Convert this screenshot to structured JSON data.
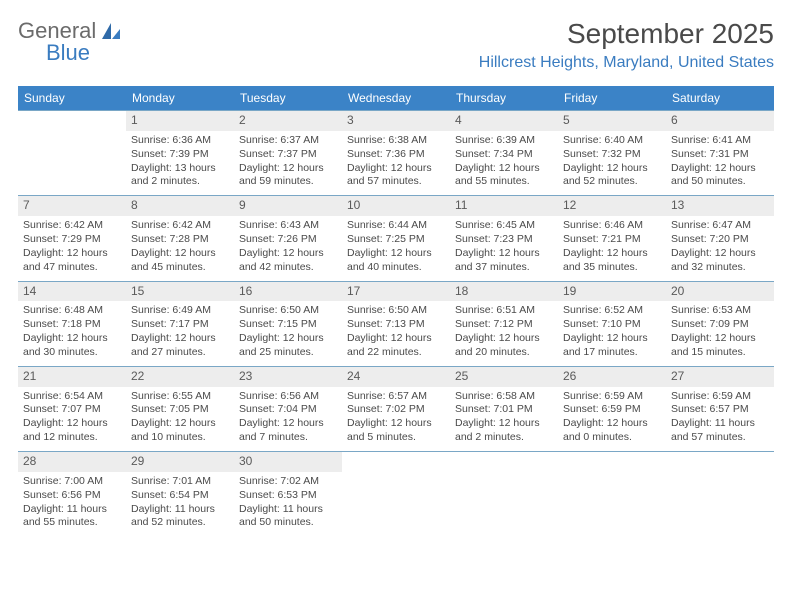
{
  "logo": {
    "text1": "General",
    "text2": "Blue"
  },
  "title": "September 2025",
  "location": "Hillcrest Heights, Maryland, United States",
  "colors": {
    "header_bg": "#3b83c7",
    "header_text": "#ffffff",
    "accent": "#3a7cc0",
    "cell_border": "#7aa7c6",
    "daynum_bg": "#ededed",
    "body_text": "#4a4a4a",
    "logo_gray": "#6b6b6b"
  },
  "day_headers": [
    "Sunday",
    "Monday",
    "Tuesday",
    "Wednesday",
    "Thursday",
    "Friday",
    "Saturday"
  ],
  "weeks": [
    [
      {
        "num": "",
        "sunrise": "",
        "sunset": "",
        "daylight": ""
      },
      {
        "num": "1",
        "sunrise": "Sunrise: 6:36 AM",
        "sunset": "Sunset: 7:39 PM",
        "daylight": "Daylight: 13 hours and 2 minutes."
      },
      {
        "num": "2",
        "sunrise": "Sunrise: 6:37 AM",
        "sunset": "Sunset: 7:37 PM",
        "daylight": "Daylight: 12 hours and 59 minutes."
      },
      {
        "num": "3",
        "sunrise": "Sunrise: 6:38 AM",
        "sunset": "Sunset: 7:36 PM",
        "daylight": "Daylight: 12 hours and 57 minutes."
      },
      {
        "num": "4",
        "sunrise": "Sunrise: 6:39 AM",
        "sunset": "Sunset: 7:34 PM",
        "daylight": "Daylight: 12 hours and 55 minutes."
      },
      {
        "num": "5",
        "sunrise": "Sunrise: 6:40 AM",
        "sunset": "Sunset: 7:32 PM",
        "daylight": "Daylight: 12 hours and 52 minutes."
      },
      {
        "num": "6",
        "sunrise": "Sunrise: 6:41 AM",
        "sunset": "Sunset: 7:31 PM",
        "daylight": "Daylight: 12 hours and 50 minutes."
      }
    ],
    [
      {
        "num": "7",
        "sunrise": "Sunrise: 6:42 AM",
        "sunset": "Sunset: 7:29 PM",
        "daylight": "Daylight: 12 hours and 47 minutes."
      },
      {
        "num": "8",
        "sunrise": "Sunrise: 6:42 AM",
        "sunset": "Sunset: 7:28 PM",
        "daylight": "Daylight: 12 hours and 45 minutes."
      },
      {
        "num": "9",
        "sunrise": "Sunrise: 6:43 AM",
        "sunset": "Sunset: 7:26 PM",
        "daylight": "Daylight: 12 hours and 42 minutes."
      },
      {
        "num": "10",
        "sunrise": "Sunrise: 6:44 AM",
        "sunset": "Sunset: 7:25 PM",
        "daylight": "Daylight: 12 hours and 40 minutes."
      },
      {
        "num": "11",
        "sunrise": "Sunrise: 6:45 AM",
        "sunset": "Sunset: 7:23 PM",
        "daylight": "Daylight: 12 hours and 37 minutes."
      },
      {
        "num": "12",
        "sunrise": "Sunrise: 6:46 AM",
        "sunset": "Sunset: 7:21 PM",
        "daylight": "Daylight: 12 hours and 35 minutes."
      },
      {
        "num": "13",
        "sunrise": "Sunrise: 6:47 AM",
        "sunset": "Sunset: 7:20 PM",
        "daylight": "Daylight: 12 hours and 32 minutes."
      }
    ],
    [
      {
        "num": "14",
        "sunrise": "Sunrise: 6:48 AM",
        "sunset": "Sunset: 7:18 PM",
        "daylight": "Daylight: 12 hours and 30 minutes."
      },
      {
        "num": "15",
        "sunrise": "Sunrise: 6:49 AM",
        "sunset": "Sunset: 7:17 PM",
        "daylight": "Daylight: 12 hours and 27 minutes."
      },
      {
        "num": "16",
        "sunrise": "Sunrise: 6:50 AM",
        "sunset": "Sunset: 7:15 PM",
        "daylight": "Daylight: 12 hours and 25 minutes."
      },
      {
        "num": "17",
        "sunrise": "Sunrise: 6:50 AM",
        "sunset": "Sunset: 7:13 PM",
        "daylight": "Daylight: 12 hours and 22 minutes."
      },
      {
        "num": "18",
        "sunrise": "Sunrise: 6:51 AM",
        "sunset": "Sunset: 7:12 PM",
        "daylight": "Daylight: 12 hours and 20 minutes."
      },
      {
        "num": "19",
        "sunrise": "Sunrise: 6:52 AM",
        "sunset": "Sunset: 7:10 PM",
        "daylight": "Daylight: 12 hours and 17 minutes."
      },
      {
        "num": "20",
        "sunrise": "Sunrise: 6:53 AM",
        "sunset": "Sunset: 7:09 PM",
        "daylight": "Daylight: 12 hours and 15 minutes."
      }
    ],
    [
      {
        "num": "21",
        "sunrise": "Sunrise: 6:54 AM",
        "sunset": "Sunset: 7:07 PM",
        "daylight": "Daylight: 12 hours and 12 minutes."
      },
      {
        "num": "22",
        "sunrise": "Sunrise: 6:55 AM",
        "sunset": "Sunset: 7:05 PM",
        "daylight": "Daylight: 12 hours and 10 minutes."
      },
      {
        "num": "23",
        "sunrise": "Sunrise: 6:56 AM",
        "sunset": "Sunset: 7:04 PM",
        "daylight": "Daylight: 12 hours and 7 minutes."
      },
      {
        "num": "24",
        "sunrise": "Sunrise: 6:57 AM",
        "sunset": "Sunset: 7:02 PM",
        "daylight": "Daylight: 12 hours and 5 minutes."
      },
      {
        "num": "25",
        "sunrise": "Sunrise: 6:58 AM",
        "sunset": "Sunset: 7:01 PM",
        "daylight": "Daylight: 12 hours and 2 minutes."
      },
      {
        "num": "26",
        "sunrise": "Sunrise: 6:59 AM",
        "sunset": "Sunset: 6:59 PM",
        "daylight": "Daylight: 12 hours and 0 minutes."
      },
      {
        "num": "27",
        "sunrise": "Sunrise: 6:59 AM",
        "sunset": "Sunset: 6:57 PM",
        "daylight": "Daylight: 11 hours and 57 minutes."
      }
    ],
    [
      {
        "num": "28",
        "sunrise": "Sunrise: 7:00 AM",
        "sunset": "Sunset: 6:56 PM",
        "daylight": "Daylight: 11 hours and 55 minutes."
      },
      {
        "num": "29",
        "sunrise": "Sunrise: 7:01 AM",
        "sunset": "Sunset: 6:54 PM",
        "daylight": "Daylight: 11 hours and 52 minutes."
      },
      {
        "num": "30",
        "sunrise": "Sunrise: 7:02 AM",
        "sunset": "Sunset: 6:53 PM",
        "daylight": "Daylight: 11 hours and 50 minutes."
      },
      {
        "num": "",
        "sunrise": "",
        "sunset": "",
        "daylight": ""
      },
      {
        "num": "",
        "sunrise": "",
        "sunset": "",
        "daylight": ""
      },
      {
        "num": "",
        "sunrise": "",
        "sunset": "",
        "daylight": ""
      },
      {
        "num": "",
        "sunrise": "",
        "sunset": "",
        "daylight": ""
      }
    ]
  ]
}
